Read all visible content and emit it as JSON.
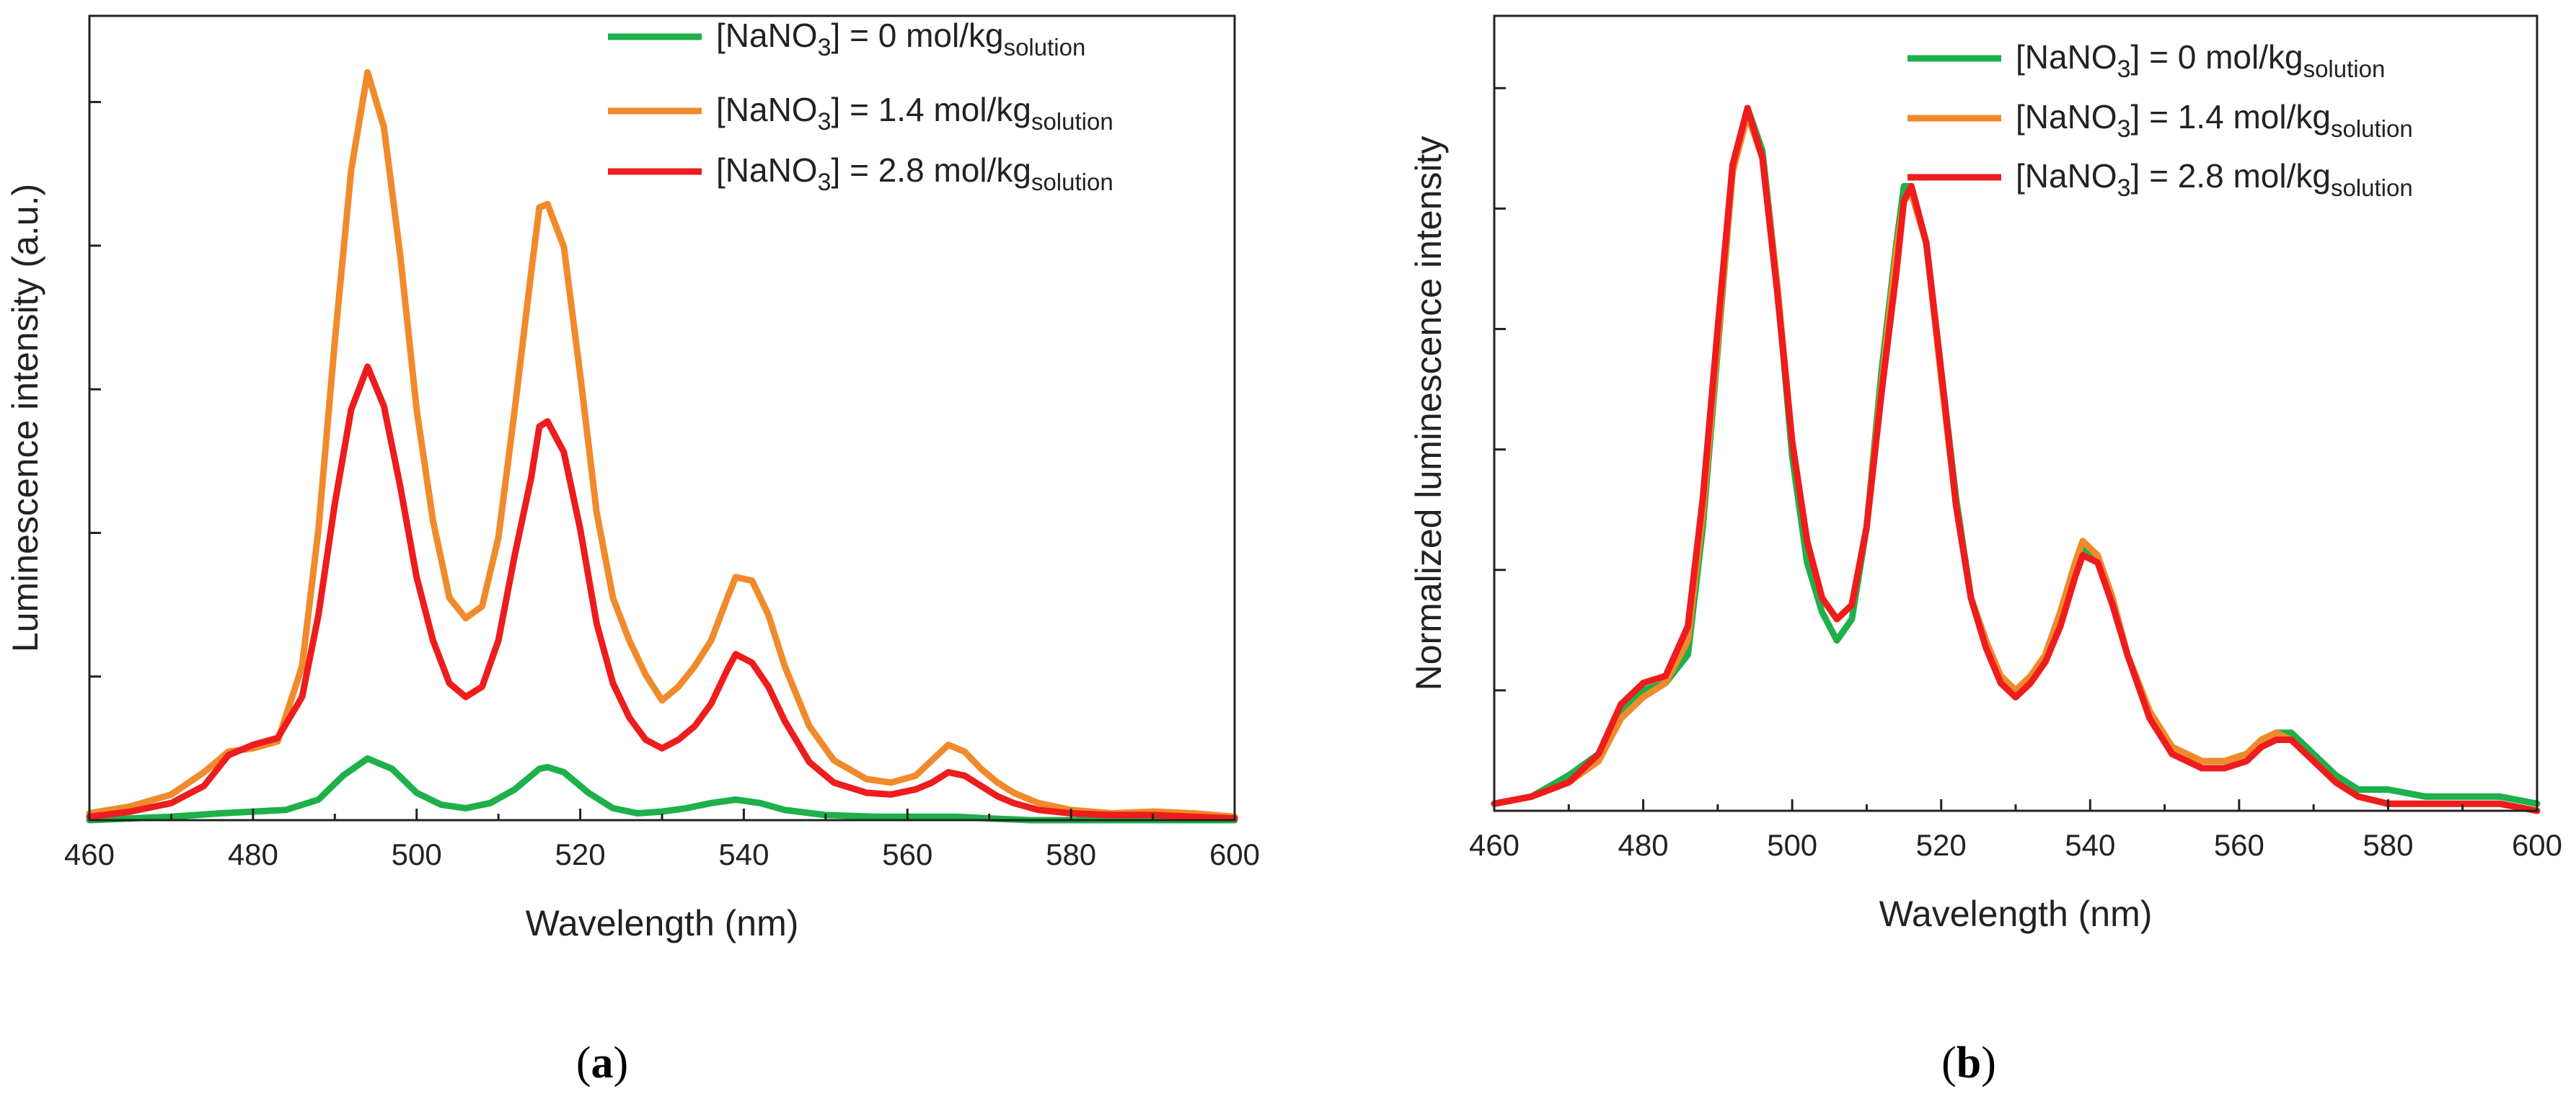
{
  "figure": {
    "panel_a_caption": "(a)",
    "panel_b_caption": "(b)",
    "caption_a_letter": "a",
    "caption_b_letter": "b"
  },
  "legend": [
    {
      "prefix": "[NaNO",
      "sub": "3",
      "mid": "] = 0 mol/kg",
      "unit_sub": "solution",
      "color": "#1db04b"
    },
    {
      "prefix": "[NaNO",
      "sub": "3",
      "mid": "] = 1.4 mol/kg",
      "unit_sub": "solution",
      "color": "#f08a2a"
    },
    {
      "prefix": "[NaNO",
      "sub": "3",
      "mid": "] = 2.8 mol/kg",
      "unit_sub": "solution",
      "color": "#ee1c1c"
    }
  ],
  "chart_data": [
    {
      "type": "line",
      "title": "",
      "xlabel": "Wavelength (nm)",
      "ylabel": "Luminescence intensity (a.u.)",
      "xlim": [
        460,
        600
      ],
      "ylim": [
        0,
        4.7
      ],
      "xticks": [
        460,
        480,
        500,
        520,
        540,
        560,
        580,
        600
      ],
      "xtick_labels": [
        "460",
        "480",
        "500",
        "520",
        "540",
        "560",
        "580",
        "600"
      ],
      "yticks_minor_count": 5,
      "legend_position": "top-right",
      "series": [
        {
          "name": "[NaNO3] = 0 mol/kgsolution",
          "color": "#1db04b",
          "x": [
            460,
            470,
            476,
            480,
            484,
            488,
            491,
            494,
            497,
            500,
            503,
            506,
            509,
            512,
            515,
            516,
            518,
            521,
            524,
            527,
            530,
            533,
            536,
            539,
            542,
            545,
            550,
            556,
            562,
            566,
            570,
            575,
            580,
            590,
            600
          ],
          "y": [
            0.0,
            0.02,
            0.04,
            0.05,
            0.06,
            0.12,
            0.26,
            0.36,
            0.3,
            0.16,
            0.09,
            0.07,
            0.1,
            0.18,
            0.3,
            0.31,
            0.28,
            0.16,
            0.07,
            0.04,
            0.05,
            0.07,
            0.1,
            0.12,
            0.1,
            0.06,
            0.03,
            0.02,
            0.02,
            0.02,
            0.01,
            0.0,
            0.0,
            0.0,
            0.0
          ]
        },
        {
          "name": "[NaNO3] = 1.4 mol/kgsolution",
          "color": "#f08a2a",
          "x": [
            460,
            465,
            470,
            474,
            477,
            480,
            483,
            486,
            488,
            490,
            492,
            494,
            496,
            498,
            500,
            502,
            504,
            506,
            508,
            510,
            512,
            514,
            515,
            516,
            518,
            520,
            522,
            524,
            526,
            528,
            530,
            532,
            534,
            536,
            538,
            539,
            541,
            543,
            545,
            548,
            551,
            555,
            558,
            561,
            563,
            565,
            567,
            569,
            571,
            573,
            576,
            580,
            585,
            590,
            595,
            600
          ],
          "y": [
            0.04,
            0.08,
            0.15,
            0.28,
            0.4,
            0.42,
            0.46,
            0.9,
            1.7,
            2.8,
            3.8,
            4.37,
            4.05,
            3.3,
            2.4,
            1.75,
            1.3,
            1.18,
            1.25,
            1.65,
            2.4,
            3.2,
            3.58,
            3.6,
            3.35,
            2.6,
            1.8,
            1.3,
            1.05,
            0.85,
            0.7,
            0.78,
            0.9,
            1.05,
            1.3,
            1.42,
            1.4,
            1.2,
            0.9,
            0.55,
            0.35,
            0.24,
            0.22,
            0.26,
            0.35,
            0.44,
            0.4,
            0.3,
            0.22,
            0.16,
            0.1,
            0.06,
            0.04,
            0.05,
            0.04,
            0.02
          ]
        },
        {
          "name": "[NaNO3] = 2.8 mol/kgsolution",
          "color": "#ee1c1c",
          "x": [
            460,
            465,
            470,
            474,
            477,
            480,
            483,
            486,
            488,
            490,
            492,
            494,
            496,
            498,
            500,
            502,
            504,
            506,
            508,
            510,
            512,
            514,
            515,
            516,
            518,
            520,
            522,
            524,
            526,
            528,
            530,
            532,
            534,
            536,
            538,
            539,
            541,
            543,
            545,
            548,
            551,
            555,
            558,
            561,
            563,
            565,
            567,
            569,
            571,
            573,
            576,
            580,
            585,
            590,
            595,
            600
          ],
          "y": [
            0.02,
            0.05,
            0.1,
            0.2,
            0.38,
            0.44,
            0.48,
            0.72,
            1.2,
            1.85,
            2.4,
            2.65,
            2.42,
            1.95,
            1.42,
            1.05,
            0.8,
            0.72,
            0.78,
            1.05,
            1.55,
            2.0,
            2.3,
            2.33,
            2.15,
            1.7,
            1.15,
            0.8,
            0.6,
            0.47,
            0.42,
            0.47,
            0.55,
            0.68,
            0.88,
            0.97,
            0.92,
            0.78,
            0.58,
            0.34,
            0.22,
            0.16,
            0.15,
            0.18,
            0.22,
            0.28,
            0.26,
            0.2,
            0.14,
            0.1,
            0.06,
            0.04,
            0.03,
            0.03,
            0.02,
            0.01
          ]
        }
      ]
    },
    {
      "type": "line",
      "title": "",
      "xlabel": "Wavelength (nm)",
      "ylabel": "Normalized luminescence intensity",
      "xlim": [
        460,
        600
      ],
      "ylim": [
        0,
        1.12
      ],
      "xticks": [
        460,
        480,
        500,
        520,
        540,
        560,
        580,
        600
      ],
      "xtick_labels": [
        "460",
        "480",
        "500",
        "520",
        "540",
        "560",
        "580",
        "600"
      ],
      "yticks_minor_count": 6,
      "legend_position": "top-right",
      "series": [
        {
          "name": "[NaNO3] = 0 mol/kgsolution",
          "color": "#1db04b",
          "x": [
            460,
            465,
            470,
            474,
            477,
            480,
            483,
            486,
            488,
            490,
            492,
            494,
            496,
            498,
            500,
            502,
            504,
            506,
            508,
            510,
            512,
            514,
            515,
            516,
            518,
            520,
            522,
            524,
            526,
            528,
            530,
            532,
            534,
            536,
            538,
            539,
            541,
            543,
            545,
            548,
            551,
            555,
            558,
            561,
            563,
            565,
            567,
            569,
            571,
            573,
            576,
            580,
            585,
            590,
            595,
            600
          ],
          "y": [
            0.01,
            0.02,
            0.05,
            0.08,
            0.14,
            0.17,
            0.18,
            0.22,
            0.4,
            0.65,
            0.9,
            0.99,
            0.93,
            0.74,
            0.5,
            0.35,
            0.28,
            0.24,
            0.27,
            0.4,
            0.62,
            0.8,
            0.88,
            0.88,
            0.8,
            0.62,
            0.44,
            0.3,
            0.24,
            0.18,
            0.16,
            0.18,
            0.22,
            0.28,
            0.34,
            0.37,
            0.36,
            0.3,
            0.22,
            0.14,
            0.09,
            0.07,
            0.07,
            0.08,
            0.1,
            0.11,
            0.11,
            0.09,
            0.07,
            0.05,
            0.03,
            0.03,
            0.02,
            0.02,
            0.02,
            0.01
          ]
        },
        {
          "name": "[NaNO3] = 1.4 mol/kgsolution",
          "color": "#f08a2a",
          "x": [
            460,
            465,
            470,
            474,
            477,
            480,
            483,
            486,
            488,
            490,
            492,
            494,
            496,
            498,
            500,
            502,
            504,
            506,
            508,
            510,
            512,
            514,
            515,
            516,
            518,
            520,
            522,
            524,
            526,
            528,
            530,
            532,
            534,
            536,
            538,
            539,
            541,
            543,
            545,
            548,
            551,
            555,
            558,
            561,
            563,
            565,
            567,
            569,
            571,
            573,
            576,
            580,
            585,
            590,
            595,
            600
          ],
          "y": [
            0.01,
            0.02,
            0.04,
            0.07,
            0.13,
            0.16,
            0.18,
            0.24,
            0.42,
            0.66,
            0.9,
            0.98,
            0.92,
            0.74,
            0.52,
            0.38,
            0.3,
            0.27,
            0.29,
            0.4,
            0.6,
            0.79,
            0.86,
            0.87,
            0.8,
            0.61,
            0.43,
            0.3,
            0.24,
            0.19,
            0.17,
            0.19,
            0.22,
            0.28,
            0.35,
            0.38,
            0.36,
            0.3,
            0.22,
            0.14,
            0.09,
            0.07,
            0.07,
            0.08,
            0.1,
            0.11,
            0.1,
            0.08,
            0.06,
            0.04,
            0.02,
            0.01,
            0.01,
            0.01,
            0.01,
            0.0
          ]
        },
        {
          "name": "[NaNO3] = 2.8 mol/kgsolution",
          "color": "#ee1c1c",
          "x": [
            460,
            465,
            470,
            474,
            477,
            480,
            483,
            486,
            488,
            490,
            492,
            494,
            496,
            498,
            500,
            502,
            504,
            506,
            508,
            510,
            512,
            514,
            515,
            516,
            518,
            520,
            522,
            524,
            526,
            528,
            530,
            532,
            534,
            536,
            538,
            539,
            541,
            543,
            545,
            548,
            551,
            555,
            558,
            561,
            563,
            565,
            567,
            569,
            571,
            573,
            576,
            580,
            585,
            590,
            595,
            600
          ],
          "y": [
            0.01,
            0.02,
            0.04,
            0.08,
            0.15,
            0.18,
            0.19,
            0.26,
            0.44,
            0.68,
            0.91,
            0.99,
            0.92,
            0.73,
            0.52,
            0.38,
            0.3,
            0.27,
            0.29,
            0.4,
            0.59,
            0.76,
            0.86,
            0.88,
            0.8,
            0.62,
            0.43,
            0.3,
            0.23,
            0.18,
            0.16,
            0.18,
            0.21,
            0.26,
            0.33,
            0.36,
            0.35,
            0.29,
            0.22,
            0.13,
            0.08,
            0.06,
            0.06,
            0.07,
            0.09,
            0.1,
            0.1,
            0.08,
            0.06,
            0.04,
            0.02,
            0.01,
            0.01,
            0.01,
            0.01,
            0.0
          ]
        }
      ]
    }
  ]
}
